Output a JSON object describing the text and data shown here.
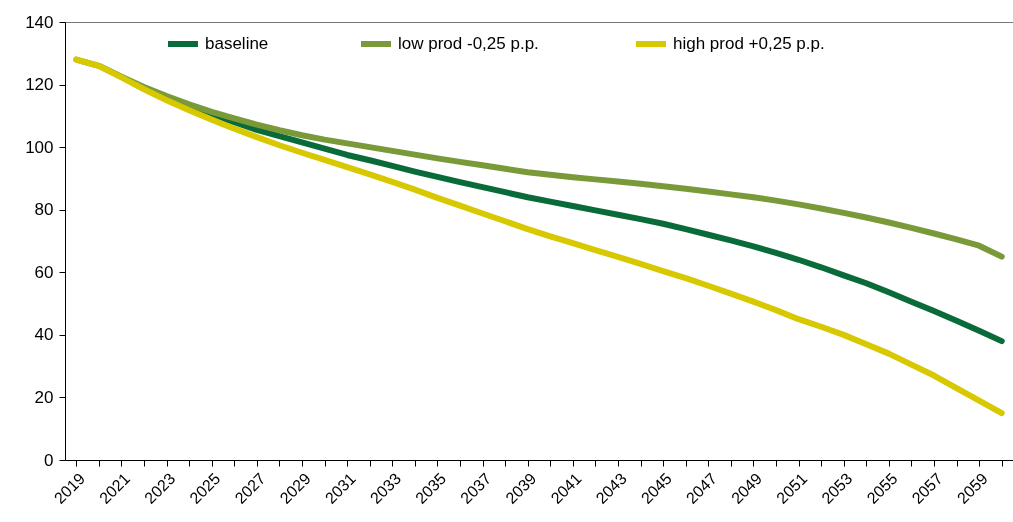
{
  "chart_data": {
    "type": "line",
    "categories": [
      "2019",
      null,
      "2021",
      null,
      "2023",
      null,
      "2025",
      null,
      "2027",
      null,
      "2029",
      null,
      "2031",
      null,
      "2033",
      null,
      "2035",
      null,
      "2037",
      null,
      "2039",
      null,
      "2041",
      null,
      "2043",
      null,
      "2045",
      null,
      "2047",
      null,
      "2049",
      null,
      "2051",
      null,
      "2053",
      null,
      "2055",
      null,
      "2057",
      null,
      "2059",
      null
    ],
    "series": [
      {
        "name": "baseline",
        "color": "#0a6b3a",
        "values": [
          null,
          null,
          null,
          null,
          null,
          113,
          110.5,
          108,
          105.5,
          103.5,
          101.5,
          99.5,
          97.5,
          95.8,
          94,
          92.2,
          90.5,
          88.8,
          87.2,
          85.6,
          84,
          82.6,
          81.2,
          79.8,
          78.4,
          77,
          75.5,
          73.8,
          72,
          70.2,
          68.3,
          66.2,
          64,
          61.6,
          59,
          56.5,
          53.6,
          50.6,
          47.6,
          44.5,
          41.3,
          38
        ]
      },
      {
        "name": "low  prod -0,25 p.p.",
        "color": "#7a9a3a",
        "values": [
          128,
          126,
          122.5,
          119.2,
          116.3,
          113.7,
          111.3,
          109.2,
          107.2,
          105.4,
          103.8,
          102.4,
          101.2,
          100,
          98.8,
          97.6,
          96.4,
          95.3,
          94.2,
          93.1,
          92,
          91.2,
          90.4,
          89.7,
          89,
          88.3,
          87.5,
          86.7,
          85.8,
          84.9,
          84,
          82.9,
          81.7,
          80.4,
          79,
          77.5,
          75.9,
          74.2,
          72.4,
          70.5,
          68.5,
          65
        ]
      },
      {
        "name": "high prod +0,25 p.p.",
        "color": "#d8c800",
        "values": [
          128,
          126,
          122.3,
          118.5,
          115,
          111.8,
          108.8,
          105.9,
          103.2,
          100.6,
          98.2,
          95.9,
          93.6,
          91.3,
          88.9,
          86.4,
          83.8,
          81.3,
          78.8,
          76.3,
          73.8,
          71.5,
          69.3,
          67.1,
          64.9,
          62.7,
          60.4,
          58.1,
          55.7,
          53.2,
          50.6,
          47.9,
          45,
          42.6,
          40,
          37,
          34,
          30.5,
          27,
          23,
          19,
          15
        ]
      }
    ],
    "ylim": [
      0,
      140
    ],
    "yticks": [
      0,
      20,
      40,
      60,
      80,
      100,
      120,
      140
    ],
    "grid": false,
    "legend": "top",
    "line_style": "solid",
    "marker": "none"
  }
}
